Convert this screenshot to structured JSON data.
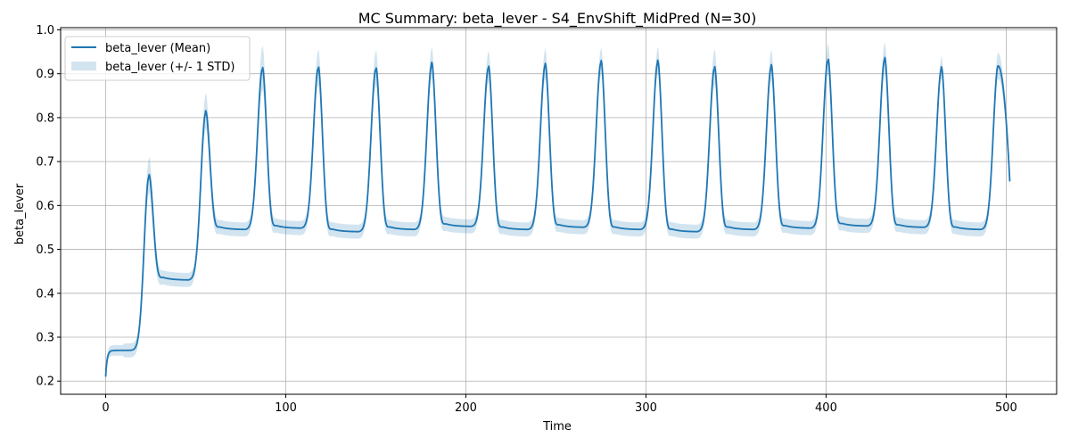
{
  "chart_data": {
    "type": "line",
    "title": "MC Summary: beta_lever - S4_EnvShift_MidPred (N=30)",
    "xlabel": "Time",
    "ylabel": "beta_lever",
    "xlim": [
      -25,
      528
    ],
    "ylim": [
      0.17,
      1.005
    ],
    "xticks": [
      0,
      100,
      200,
      300,
      400,
      500
    ],
    "yticks": [
      0.2,
      0.3,
      0.4,
      0.5,
      0.6,
      0.7,
      0.8,
      0.9,
      1.0
    ],
    "xtick_labels": [
      "0",
      "100",
      "200",
      "300",
      "400",
      "500"
    ],
    "ytick_labels": [
      "0.2",
      "0.3",
      "0.4",
      "0.5",
      "0.6",
      "0.7",
      "0.8",
      "0.9",
      "1.0"
    ],
    "grid": true,
    "legend_position": "top-left",
    "colors": {
      "line": "#1f77b4",
      "band": "#1f77b4",
      "grid": "#b0b0b0"
    },
    "series": [
      {
        "name": "beta_lever (Mean)",
        "style": "line"
      },
      {
        "name": "beta_lever (+/- 1 STD)",
        "style": "band"
      }
    ],
    "x_end": 502,
    "start_value": 0.21,
    "initial_plateau": 0.27,
    "peak_width": 3.5,
    "peaks": [
      {
        "t": 24,
        "value": 0.665,
        "std": 0.04,
        "baseline_after": 0.43
      },
      {
        "t": 55.5,
        "value": 0.81,
        "std": 0.04,
        "baseline_after": 0.545
      },
      {
        "t": 87,
        "value": 0.91,
        "std": 0.05,
        "baseline_after": 0.548
      },
      {
        "t": 118,
        "value": 0.912,
        "std": 0.04,
        "baseline_after": 0.54
      },
      {
        "t": 150,
        "value": 0.91,
        "std": 0.04,
        "baseline_after": 0.545
      },
      {
        "t": 181,
        "value": 0.92,
        "std": 0.035,
        "baseline_after": 0.552
      },
      {
        "t": 212.5,
        "value": 0.913,
        "std": 0.035,
        "baseline_after": 0.545
      },
      {
        "t": 244,
        "value": 0.918,
        "std": 0.035,
        "baseline_after": 0.55
      },
      {
        "t": 275,
        "value": 0.925,
        "std": 0.03,
        "baseline_after": 0.545
      },
      {
        "t": 306.5,
        "value": 0.925,
        "std": 0.03,
        "baseline_after": 0.54
      },
      {
        "t": 338,
        "value": 0.912,
        "std": 0.04,
        "baseline_after": 0.545
      },
      {
        "t": 369.5,
        "value": 0.915,
        "std": 0.035,
        "baseline_after": 0.548
      },
      {
        "t": 401,
        "value": 0.93,
        "std": 0.035,
        "baseline_after": 0.553
      },
      {
        "t": 432.5,
        "value": 0.932,
        "std": 0.035,
        "baseline_after": 0.55
      },
      {
        "t": 464,
        "value": 0.91,
        "std": 0.025,
        "baseline_after": 0.545
      },
      {
        "t": 495.5,
        "value": 0.918,
        "std": 0.03,
        "baseline_after": 0.6
      }
    ],
    "end_value": 0.655
  }
}
